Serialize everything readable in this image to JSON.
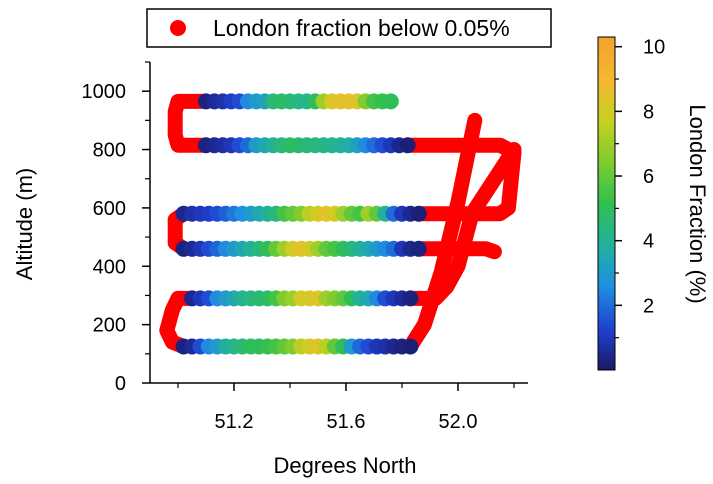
{
  "chart_data": {
    "type": "scatter",
    "title": "",
    "xlabel": "Degrees North",
    "ylabel": "Altitude (m)",
    "xlim": [
      50.9,
      52.25
    ],
    "ylim": [
      0,
      1100
    ],
    "xticks": [
      51.2,
      51.6,
      52.0
    ],
    "xtick_labels": [
      "51.2",
      "51.6",
      "52.0"
    ],
    "yticks": [
      0,
      200,
      400,
      600,
      800,
      1000
    ],
    "ytick_labels": [
      "0",
      "200",
      "400",
      "600",
      "800",
      "1000"
    ],
    "legend": {
      "position": "top",
      "entries": [
        {
          "label": "London fraction below 0.05%",
          "color": "#ff0000"
        }
      ]
    },
    "colorbar": {
      "label": "London Fraction (%)",
      "range": [
        0,
        10.3
      ],
      "ticks": [
        2,
        4,
        6,
        8,
        10
      ],
      "tick_labels": [
        "2",
        "4",
        "6",
        "8",
        "10"
      ],
      "colormap": [
        "#1a1a66",
        "#1f3fd0",
        "#1f8fe0",
        "#22b0a0",
        "#30c050",
        "#7ccc30",
        "#c8d020",
        "#f5b830",
        "#f6a030"
      ]
    },
    "below_threshold_color": "#ff0000",
    "tracks": [
      {
        "alt": 965,
        "x": [
          51.1,
          51.13,
          51.16,
          51.19,
          51.22,
          51.25,
          51.28,
          51.31,
          51.34,
          51.37,
          51.4,
          51.43,
          51.46,
          51.49,
          51.52,
          51.55,
          51.58,
          51.61,
          51.64,
          51.67,
          51.7,
          51.73,
          51.76
        ],
        "frac": [
          0.3,
          0.6,
          0.8,
          1.2,
          1.5,
          2.5,
          3.0,
          3.3,
          4.5,
          4.9,
          4.6,
          4.4,
          4.2,
          5.0,
          7.0,
          8.2,
          8.5,
          8.6,
          8.3,
          6.5,
          5.5,
          5.2,
          5.0
        ]
      },
      {
        "alt": 815,
        "x": [
          51.1,
          51.13,
          51.16,
          51.19,
          51.22,
          51.25,
          51.28,
          51.31,
          51.34,
          51.37,
          51.4,
          51.43,
          51.46,
          51.49,
          51.52,
          51.55,
          51.58,
          51.61,
          51.64,
          51.67,
          51.7,
          51.73,
          51.76,
          51.79,
          51.82
        ],
        "frac": [
          0.3,
          0.5,
          0.7,
          1.0,
          1.5,
          2.0,
          3.0,
          3.5,
          4.0,
          4.5,
          4.8,
          4.7,
          4.5,
          4.4,
          4.3,
          4.2,
          4.0,
          3.8,
          3.2,
          2.5,
          2.0,
          1.5,
          1.0,
          0.5,
          0.2
        ]
      },
      {
        "alt": 580,
        "x": [
          51.02,
          51.05,
          51.08,
          51.11,
          51.14,
          51.17,
          51.2,
          51.23,
          51.26,
          51.29,
          51.32,
          51.35,
          51.38,
          51.41,
          51.44,
          51.47,
          51.5,
          51.53,
          51.56,
          51.59,
          51.62,
          51.65,
          51.68,
          51.71,
          51.74,
          51.77,
          51.8,
          51.83,
          51.86
        ],
        "frac": [
          0.5,
          0.8,
          1.0,
          1.2,
          1.5,
          1.8,
          2.2,
          2.6,
          3.0,
          3.5,
          4.0,
          4.5,
          5.5,
          6.0,
          6.5,
          7.5,
          8.0,
          8.5,
          8.0,
          7.0,
          6.0,
          5.5,
          7.0,
          6.0,
          4.0,
          2.0,
          1.0,
          0.5,
          0.2
        ]
      },
      {
        "alt": 460,
        "x": [
          51.02,
          51.05,
          51.08,
          51.11,
          51.14,
          51.17,
          51.2,
          51.23,
          51.26,
          51.29,
          51.32,
          51.35,
          51.38,
          51.41,
          51.44,
          51.47,
          51.5,
          51.53,
          51.56,
          51.59,
          51.62,
          51.65,
          51.68,
          51.71,
          51.74,
          51.77,
          51.8,
          51.83,
          51.86
        ],
        "frac": [
          0.3,
          0.6,
          1.0,
          1.5,
          1.9,
          2.5,
          3.0,
          3.5,
          4.0,
          4.5,
          5.0,
          6.0,
          7.0,
          8.0,
          8.5,
          8.0,
          7.0,
          6.0,
          5.5,
          5.0,
          4.5,
          4.0,
          3.5,
          3.0,
          2.5,
          2.0,
          1.0,
          0.5,
          0.3
        ]
      },
      {
        "alt": 290,
        "x": [
          51.05,
          51.08,
          51.11,
          51.14,
          51.17,
          51.2,
          51.23,
          51.26,
          51.29,
          51.32,
          51.35,
          51.38,
          51.41,
          51.44,
          51.47,
          51.5,
          51.53,
          51.56,
          51.59,
          51.62,
          51.65,
          51.68,
          51.71,
          51.74,
          51.77,
          51.8,
          51.83
        ],
        "frac": [
          0.5,
          1.0,
          1.5,
          2.5,
          3.0,
          3.5,
          4.0,
          4.4,
          4.6,
          4.8,
          5.5,
          6.5,
          7.0,
          8.0,
          8.2,
          8.3,
          7.0,
          6.5,
          6.0,
          5.0,
          4.0,
          3.5,
          2.5,
          1.5,
          1.0,
          0.6,
          0.3
        ]
      },
      {
        "alt": 125,
        "x": [
          51.02,
          51.05,
          51.08,
          51.11,
          51.14,
          51.17,
          51.2,
          51.23,
          51.26,
          51.29,
          51.32,
          51.35,
          51.38,
          51.41,
          51.44,
          51.47,
          51.5,
          51.53,
          51.56,
          51.59,
          51.62,
          51.65,
          51.68,
          51.71,
          51.74,
          51.77,
          51.8,
          51.83
        ],
        "frac": [
          0.3,
          0.6,
          1.5,
          2.5,
          3.0,
          3.8,
          4.2,
          4.5,
          5.0,
          5.0,
          5.2,
          5.5,
          6.0,
          6.5,
          7.5,
          8.0,
          8.3,
          7.5,
          6.0,
          5.0,
          3.0,
          2.0,
          1.5,
          1.0,
          0.8,
          0.5,
          0.3,
          0.2
        ]
      }
    ],
    "red_paths": [
      [
        [
          51.1,
          965
        ],
        [
          51.0,
          965
        ],
        [
          50.99,
          930
        ],
        [
          50.99,
          850
        ],
        [
          51.0,
          815
        ],
        [
          51.1,
          815
        ]
      ],
      [
        [
          51.82,
          815
        ],
        [
          52.15,
          815
        ],
        [
          52.2,
          790
        ],
        [
          52.18,
          600
        ],
        [
          52.15,
          580
        ],
        [
          51.86,
          580
        ]
      ],
      [
        [
          51.02,
          580
        ],
        [
          50.99,
          560
        ],
        [
          50.99,
          480
        ],
        [
          51.02,
          460
        ]
      ],
      [
        [
          51.86,
          460
        ],
        [
          52.1,
          460
        ],
        [
          52.13,
          450
        ]
      ],
      [
        [
          51.83,
          290
        ],
        [
          51.92,
          290
        ],
        [
          51.96,
          330
        ],
        [
          52.0,
          400
        ],
        [
          52.05,
          580
        ],
        [
          52.2,
          800
        ]
      ],
      [
        [
          51.05,
          290
        ],
        [
          51.0,
          290
        ],
        [
          50.98,
          250
        ],
        [
          50.96,
          180
        ],
        [
          50.98,
          140
        ],
        [
          51.02,
          125
        ]
      ],
      [
        [
          51.83,
          125
        ],
        [
          51.88,
          200
        ],
        [
          51.94,
          380
        ],
        [
          52.0,
          620
        ],
        [
          52.06,
          900
        ]
      ]
    ]
  }
}
